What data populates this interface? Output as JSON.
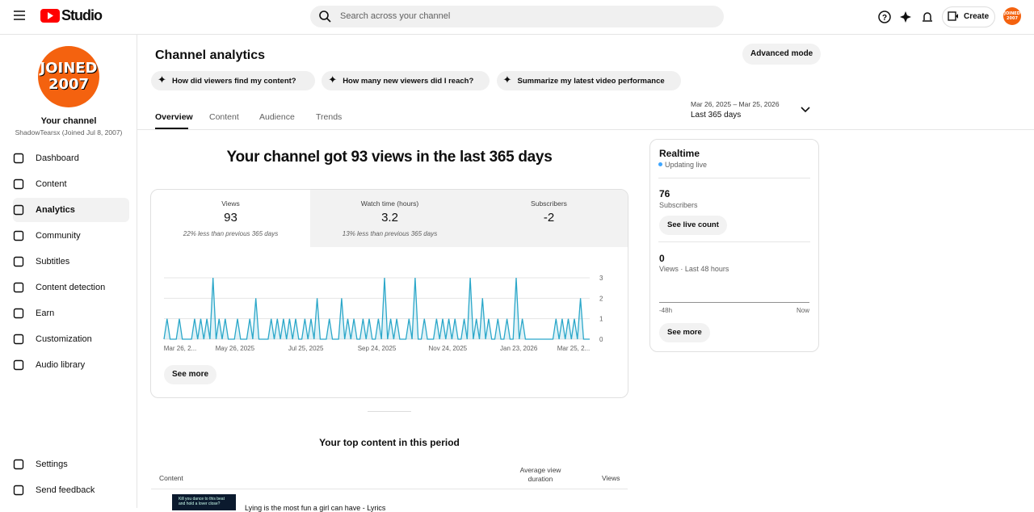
{
  "header": {
    "logo": "Studio",
    "search": "Search across your channel",
    "create": "Create",
    "avatar": [
      "JOINED",
      "2007"
    ]
  },
  "sidebar": {
    "avatar": [
      "JOINED",
      "2007"
    ],
    "channel": "Your channel",
    "handle": "ShadowTearsx (Joined Jul 8, 2007)",
    "nav": [
      "Dashboard",
      "Content",
      "Analytics",
      "Community",
      "Subtitles",
      "Content detection",
      "Earn",
      "Customization",
      "Audio library"
    ],
    "footer": [
      "Settings",
      "Send feedback"
    ]
  },
  "page": {
    "title": "Channel analytics",
    "advanced": "Advanced mode",
    "chips": [
      "How did viewers find my content?",
      "How many new viewers did I reach?",
      "Summarize my latest video performance"
    ],
    "tabs": [
      "Overview",
      "Content",
      "Audience",
      "Trends"
    ],
    "date_range": "Mar 26, 2025 – Mar 25, 2026",
    "period": "Last 365 days"
  },
  "headline": "Your channel got 93 views in the last 365 days",
  "metrics": [
    {
      "label": "Views",
      "value": "93",
      "note": "22% less than previous 365 days"
    },
    {
      "label": "Watch time (hours)",
      "value": "3.2",
      "note": "13% less than previous 365 days"
    },
    {
      "label": "Subscribers",
      "value": "-2"
    }
  ],
  "chart": {
    "x_labels": [
      "Mar 26, 2...",
      "May 26, 2025",
      "Jul 25, 2025",
      "Sep 24, 2025",
      "Nov 24, 2025",
      "Jan 23, 2026",
      "Mar 25, 2..."
    ],
    "ylim": [
      0,
      3
    ],
    "yticks": [
      0,
      1,
      2,
      3
    ],
    "color": "#2ba7c9",
    "values": [
      0,
      1,
      0,
      0,
      0,
      1,
      0,
      0,
      0,
      0,
      1,
      0,
      1,
      0,
      1,
      0,
      3,
      0,
      1,
      0,
      1,
      0,
      0,
      0,
      1,
      0,
      0,
      0,
      1,
      0,
      2,
      0,
      0,
      0,
      0,
      1,
      0,
      1,
      0,
      1,
      0,
      1,
      0,
      1,
      0,
      0,
      1,
      0,
      1,
      0,
      2,
      0,
      0,
      0,
      1,
      0,
      0,
      0,
      2,
      0,
      1,
      0,
      1,
      0,
      0,
      1,
      0,
      1,
      0,
      0,
      1,
      0,
      3,
      0,
      1,
      0,
      1,
      0,
      0,
      0,
      1,
      0,
      3,
      0,
      0,
      1,
      0,
      0,
      0,
      1,
      0,
      1,
      0,
      1,
      0,
      1,
      0,
      0,
      1,
      0,
      3,
      0,
      1,
      0,
      2,
      0,
      1,
      0,
      0,
      1,
      0,
      0,
      1,
      0,
      0,
      3,
      0,
      1,
      0,
      0,
      0,
      0,
      0,
      0,
      0,
      0,
      0,
      0,
      1,
      0,
      1,
      0,
      1,
      0,
      1,
      0,
      2,
      0,
      0,
      0
    ],
    "see_more": "See more"
  },
  "realtime": {
    "title": "Realtime",
    "status": "Updating live",
    "subs": "76",
    "subs_label": "Subscribers",
    "live": "See live count",
    "views": "0",
    "views_label": "Views · Last 48 hours",
    "axis": [
      "-48h",
      "Now"
    ],
    "see_more": "See more"
  },
  "top": {
    "title": "Your top content in this period",
    "columns": [
      "Content",
      "Average view duration",
      "Views"
    ],
    "thumb": "Kill you dance to this beat and hold a lover close?",
    "row": "Lying is the most fun a girl can have - Lyrics"
  }
}
